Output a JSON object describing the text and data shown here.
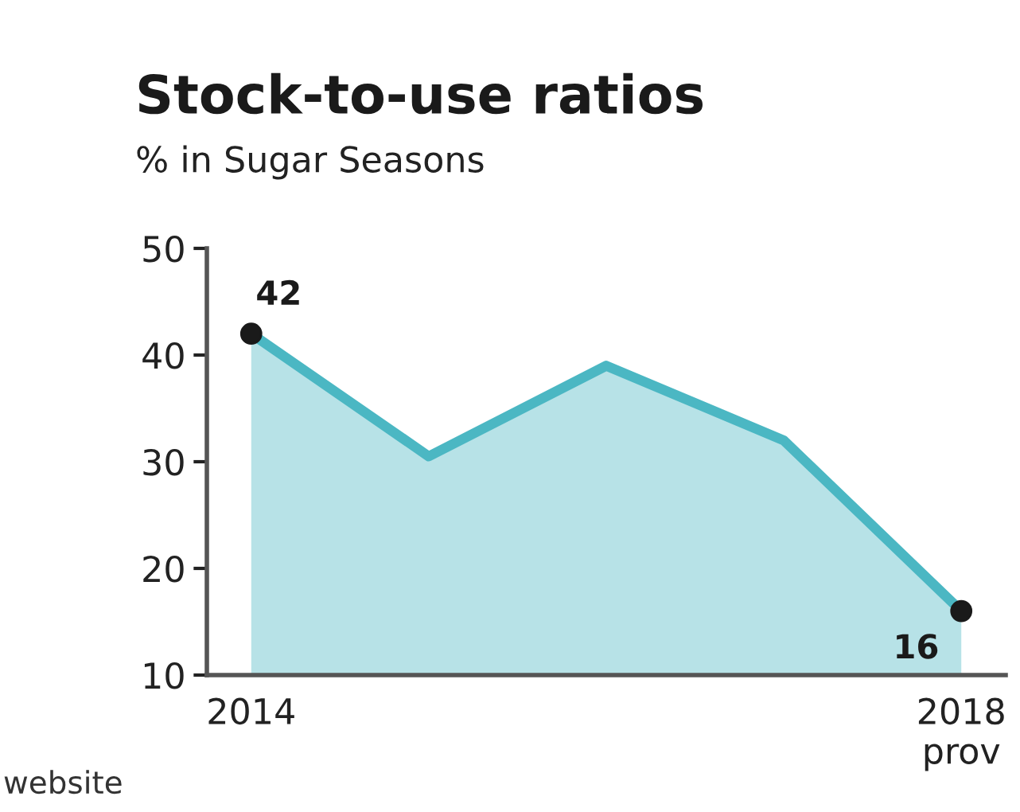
{
  "chart_data": {
    "type": "area",
    "title": "Stock-to-use ratios",
    "subtitle": "% in Sugar Seasons",
    "categories": [
      "2014",
      null,
      null,
      null,
      "2018\nprov"
    ],
    "series": [
      {
        "color": "#4bb7c3",
        "values": [
          42,
          30.5,
          39,
          32,
          16
        ],
        "value_labels": [
          "42",
          null,
          null,
          null,
          "16"
        ]
      }
    ],
    "ylim": [
      10,
      50
    ],
    "yticks": [
      10,
      20,
      30,
      40,
      50
    ],
    "grid": false,
    "legend": false,
    "annotations": [
      "website"
    ]
  }
}
